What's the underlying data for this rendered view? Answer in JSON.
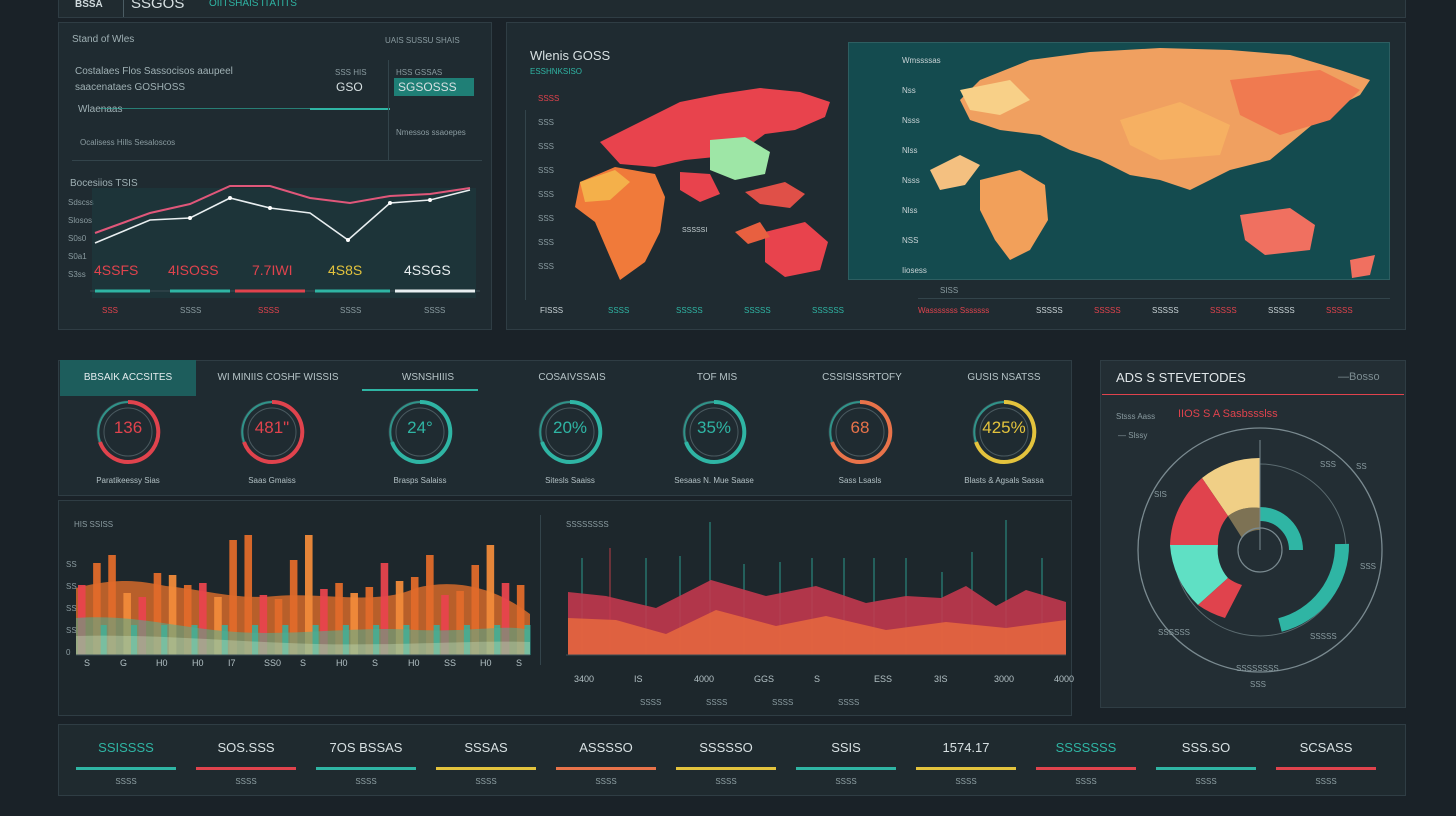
{
  "header": {
    "brand": "BSSA",
    "code": "SSGOS",
    "subtitle": "OIITSHAIS ITATITS"
  },
  "top_left": {
    "title": "Stand of Wles",
    "header_right": "UAIS SUSSU SHAIS",
    "row1_label": "Costalaes Flos Sassocisos aaupeel",
    "row1b_label": "saacenataes GOSHOSS",
    "row2_label": "Wlaenaas",
    "row3_label": "Ocalisess Hills Sesaloscos",
    "stat1_top": "SSS HIS",
    "stat1_val": "GSO",
    "stat2_top": "HSS GSSAS",
    "stat2_val": "SGSOSSS",
    "stat2_sub": "Nmessos ssaoepes",
    "chart_title": "Bocesiios TSIS",
    "y_ticks": [
      "Sdscss",
      "Slosos",
      "S0s0",
      "S0a1",
      "S3ss"
    ],
    "pcts": [
      "4SSFS",
      "4ISOSS",
      "7.7IWI",
      "4S8S",
      "4SSGS"
    ],
    "x_labels": [
      "SSS",
      "SSSS",
      "SSSS",
      "SSSS",
      "SSSS"
    ]
  },
  "top_mid": {
    "title": "Wlenis GOSS",
    "subtitle": "ESSHNKSISO",
    "y_ticks": [
      "SSSS",
      "SSS",
      "SSS",
      "SSS",
      "SSS",
      "SSS",
      "SSS",
      "SSS"
    ],
    "map_label": "SSSSSI",
    "x_labels": [
      "FISSS",
      "SSSS",
      "SSSSS",
      "SSSSS",
      "SSSSSS"
    ]
  },
  "top_right": {
    "side_labels": [
      "Wmssssas",
      "Nss",
      "Nsss",
      "Nlss",
      "Nsss",
      "Nlss",
      "NSS",
      "Iiosess"
    ],
    "axis_title": "SISS",
    "x_labels": [
      "Wasssssss Sssssss",
      "SSSSS",
      "SSSSS",
      "SSSSS",
      "SSSSS",
      "SSSSS",
      "SSSSS"
    ]
  },
  "kpi_tabs": [
    "BBSAIK ACCSITES",
    "WI MINIIS COSHF WISSIS",
    "WSNSHIIIS",
    "COSAIVSSAIS",
    "TOF MIS",
    "CSSISISSRTOFY",
    "GUSIS NSATSS"
  ],
  "gauges": [
    {
      "value": "136",
      "label": "Paratikeessy Sias",
      "color": "#e0434d"
    },
    {
      "value": "481\"",
      "label": "Saas Gmaiss",
      "color": "#e0434d"
    },
    {
      "value": "24°",
      "label": "Brasps Salaiss",
      "color": "#2fb5a4"
    },
    {
      "value": "20%",
      "label": "Sitesls Saaiss",
      "color": "#2fb5a4"
    },
    {
      "value": "35%",
      "label": "Sesaas N. Mue Saase",
      "color": "#2fb5a4"
    },
    {
      "value": "68",
      "label": "Sass Lsasls",
      "color": "#e8734a"
    },
    {
      "value": "425%",
      "label": "Blasts & Agsals Sassa",
      "color": "#e3c33d"
    }
  ],
  "bars_chart": {
    "title": "HIS SSISS",
    "x_labels": [
      "S",
      "G",
      "H0",
      "H0",
      "I7",
      "SS0",
      "S",
      "H0",
      "S",
      "H0",
      "SS",
      "H0",
      "S"
    ],
    "y_ticks": [
      "SS",
      "SS",
      "SS",
      "SS",
      "0"
    ]
  },
  "area_chart": {
    "title": "SSSSSSSS",
    "x_labels": [
      "3400",
      "IS",
      "4000",
      "GGS",
      "S",
      "ESS",
      "3IS",
      "3000",
      "4000"
    ],
    "x_sub": [
      "SSSS",
      "SSSS",
      "SSSS",
      "SSSS"
    ]
  },
  "donut_panel": {
    "title": "ADS S STEVETODES",
    "link": "—Bosso",
    "legend1": "Stsss Aass",
    "legend2": "IIOS S A Sasbssslss",
    "legend3": "— Slssy",
    "labels": [
      "SSS",
      "SIS",
      "SSS",
      "SSSSSS",
      "SSSSS",
      "SSSSSSSS",
      "SSS",
      "SS"
    ]
  },
  "bottom_stats": [
    {
      "value": "SSISSSS",
      "label": "SSSS",
      "color": "#2fb5a4"
    },
    {
      "value": "SOS.SSS",
      "label": "SSSS",
      "color": "#e0434d"
    },
    {
      "value": "7OS BSSAS",
      "label": "SSSS",
      "color": "#2fb5a4"
    },
    {
      "value": "SSSAS",
      "label": "SSSS",
      "color": "#e3c33d"
    },
    {
      "value": "ASSSSO",
      "label": "SSSS",
      "color": "#e8734a"
    },
    {
      "value": "SSSSSO",
      "label": "SSSS",
      "color": "#e3c33d"
    },
    {
      "value": "SSIS",
      "label": "SSSS",
      "color": "#2fb5a4"
    },
    {
      "value": "1574.17",
      "label": "SSSS",
      "color": "#e3c33d"
    },
    {
      "value": "SSSSSSS",
      "label": "SSSS",
      "color": "#e0434d"
    },
    {
      "value": "SSS.SO",
      "label": "SSSS",
      "color": "#2fb5a4"
    },
    {
      "value": "SCSASS",
      "label": "SSSS",
      "color": "#e0434d"
    }
  ],
  "colors": {
    "teal": "#2fb5a4",
    "red": "#e0434d",
    "orange": "#e8734a",
    "yellow": "#e3c33d",
    "pink": "#e0577a"
  }
}
